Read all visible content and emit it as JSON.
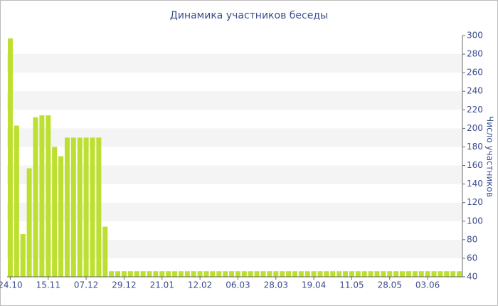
{
  "chart_data": {
    "type": "bar",
    "title": "Динамика участников беседы",
    "y_label": "Число участников",
    "categories": [
      "24.10",
      null,
      null,
      null,
      null,
      null,
      "15.11",
      null,
      null,
      null,
      null,
      null,
      "07.12",
      null,
      null,
      null,
      null,
      null,
      "29.12",
      null,
      null,
      null,
      null,
      null,
      "21.01",
      null,
      null,
      null,
      null,
      null,
      "12.02",
      null,
      null,
      null,
      null,
      null,
      "06.03",
      null,
      null,
      null,
      null,
      null,
      "28.03",
      null,
      null,
      null,
      null,
      null,
      "19.04",
      null,
      null,
      null,
      null,
      null,
      "11.05",
      null,
      null,
      null,
      null,
      null,
      "28.05",
      null,
      null,
      null,
      null,
      null,
      "03.06",
      null,
      null,
      null,
      null,
      null
    ],
    "values": [
      297,
      203,
      86,
      157,
      212,
      214,
      214,
      180,
      170,
      190,
      190,
      190,
      190,
      190,
      190,
      94,
      46,
      46,
      46,
      46,
      46,
      46,
      46,
      46,
      46,
      46,
      46,
      46,
      46,
      46,
      46,
      46,
      46,
      46,
      46,
      46,
      46,
      46,
      46,
      46,
      46,
      46,
      46,
      46,
      46,
      46,
      46,
      46,
      46,
      46,
      46,
      46,
      46,
      46,
      46,
      46,
      46,
      46,
      46,
      46,
      46,
      46,
      46,
      46,
      46,
      46,
      46,
      46,
      46,
      46,
      46,
      46
    ],
    "color": "#bde030",
    "ylim": [
      40,
      300
    ],
    "yticks": [
      40,
      60,
      80,
      100,
      120,
      140,
      160,
      180,
      200,
      220,
      240,
      260,
      280,
      300
    ],
    "y_axis_side": "right"
  }
}
